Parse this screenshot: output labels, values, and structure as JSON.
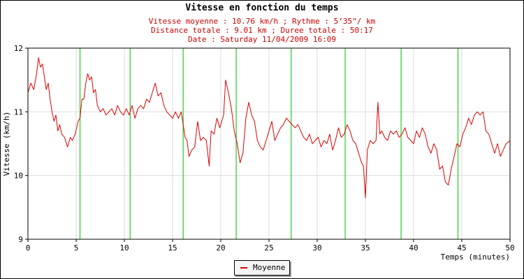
{
  "chart_data": {
    "type": "line",
    "title": "Vitesse en fonction du temps",
    "subtitles": [
      "Vitesse moyenne : 10.76 km/h ; Rythme : 5’35\"/ km",
      "Distance totale : 9.01 km ; Duree totale : 50:17",
      "Date : Saturday 11/04/2009 16:09"
    ],
    "xlabel": "Temps (minutes)",
    "ylabel": "Vitesse (km/h)",
    "xlim": [
      0,
      50
    ],
    "ylim": [
      9,
      12
    ],
    "xticks": [
      0,
      5,
      10,
      15,
      20,
      25,
      30,
      35,
      40,
      45,
      50
    ],
    "yticks": [
      9,
      10,
      11,
      12
    ],
    "grid": true,
    "legend_position": "bottom-center",
    "markers_km": [
      5.4,
      10.6,
      16.1,
      21.6,
      27.3,
      32.9,
      38.7,
      44.6
    ],
    "series": [
      {
        "name": "Moyenne",
        "color": "#dd0000",
        "x": [
          0,
          0.3,
          0.6,
          0.9,
          1.1,
          1.3,
          1.5,
          1.7,
          1.9,
          2.1,
          2.3,
          2.5,
          2.7,
          2.9,
          3.1,
          3.3,
          3.5,
          3.8,
          4.1,
          4.4,
          4.6,
          4.9,
          5.2,
          5.4,
          5.6,
          5.8,
          6.0,
          6.2,
          6.4,
          6.6,
          6.8,
          7.0,
          7.2,
          7.5,
          7.8,
          8.1,
          8.4,
          8.7,
          9.0,
          9.3,
          9.6,
          9.9,
          10.2,
          10.5,
          10.8,
          11.1,
          11.4,
          11.7,
          12.0,
          12.3,
          12.6,
          12.9,
          13.2,
          13.5,
          13.8,
          14.1,
          14.4,
          14.7,
          15.0,
          15.3,
          15.6,
          15.9,
          16.1,
          16.3,
          16.5,
          16.7,
          17.0,
          17.3,
          17.6,
          17.9,
          18.2,
          18.5,
          18.8,
          19.0,
          19.3,
          19.6,
          19.9,
          20.1,
          20.3,
          20.5,
          20.8,
          21.1,
          21.4,
          21.7,
          22.0,
          22.3,
          22.6,
          22.9,
          23.2,
          23.5,
          23.8,
          24.1,
          24.4,
          24.7,
          25.0,
          25.3,
          25.6,
          25.9,
          26.2,
          26.5,
          26.8,
          27.1,
          27.4,
          27.7,
          28.0,
          28.3,
          28.6,
          28.9,
          29.2,
          29.5,
          29.8,
          30.1,
          30.4,
          30.7,
          31.0,
          31.3,
          31.6,
          31.9,
          32.2,
          32.5,
          32.8,
          33.1,
          33.4,
          33.7,
          34.0,
          34.3,
          34.6,
          34.8,
          35.0,
          35.2,
          35.5,
          35.8,
          36.1,
          36.3,
          36.5,
          36.7,
          37.0,
          37.3,
          37.6,
          37.9,
          38.2,
          38.5,
          38.8,
          39.1,
          39.4,
          39.7,
          40.0,
          40.3,
          40.6,
          40.9,
          41.2,
          41.5,
          41.8,
          42.1,
          42.4,
          42.7,
          43.0,
          43.3,
          43.6,
          43.9,
          44.2,
          44.5,
          44.8,
          45.1,
          45.4,
          45.7,
          46.0,
          46.3,
          46.6,
          46.9,
          47.2,
          47.5,
          47.8,
          48.1,
          48.4,
          48.7,
          49.0,
          49.3,
          49.6,
          50.0
        ],
        "y": [
          11.3,
          11.45,
          11.35,
          11.6,
          11.85,
          11.7,
          11.75,
          11.55,
          11.35,
          11.45,
          11.2,
          11.0,
          10.85,
          10.95,
          10.7,
          10.8,
          10.65,
          10.6,
          10.45,
          10.6,
          10.55,
          10.65,
          10.85,
          10.9,
          11.2,
          11.2,
          11.45,
          11.6,
          11.5,
          11.55,
          11.3,
          11.35,
          11.1,
          11.0,
          11.05,
          10.95,
          11.0,
          11.05,
          10.95,
          11.1,
          11.0,
          10.95,
          11.05,
          10.95,
          11.1,
          10.9,
          11.05,
          11.1,
          11.05,
          11.2,
          11.15,
          11.3,
          11.45,
          11.25,
          11.3,
          11.1,
          11.0,
          10.95,
          10.9,
          11.0,
          10.9,
          11.0,
          10.8,
          10.6,
          10.55,
          10.3,
          10.4,
          10.45,
          10.85,
          10.55,
          10.6,
          10.55,
          10.15,
          10.7,
          10.65,
          10.9,
          10.75,
          10.85,
          10.95,
          11.5,
          11.3,
          11.05,
          10.7,
          10.5,
          10.2,
          10.35,
          10.9,
          11.15,
          10.95,
          10.85,
          10.55,
          10.45,
          10.4,
          10.55,
          10.7,
          10.85,
          10.55,
          10.65,
          10.75,
          10.8,
          10.9,
          10.85,
          10.8,
          10.75,
          10.8,
          10.7,
          10.6,
          10.55,
          10.65,
          10.5,
          10.55,
          10.6,
          10.45,
          10.55,
          10.5,
          10.65,
          10.4,
          10.55,
          10.75,
          10.6,
          10.65,
          10.8,
          10.7,
          10.55,
          10.5,
          10.35,
          10.2,
          10.15,
          9.65,
          10.4,
          10.55,
          10.5,
          10.55,
          11.15,
          10.65,
          10.7,
          10.6,
          10.55,
          10.7,
          10.65,
          10.7,
          10.6,
          10.65,
          10.75,
          10.6,
          10.55,
          10.5,
          10.7,
          10.6,
          10.75,
          10.65,
          10.45,
          10.35,
          10.5,
          10.4,
          10.1,
          10.15,
          9.9,
          9.85,
          10.1,
          10.3,
          10.5,
          10.45,
          10.65,
          10.75,
          10.9,
          10.8,
          10.95,
          11.0,
          10.95,
          11.0,
          10.7,
          10.65,
          10.5,
          10.35,
          10.5,
          10.3,
          10.4,
          10.5,
          10.55
        ]
      }
    ]
  }
}
